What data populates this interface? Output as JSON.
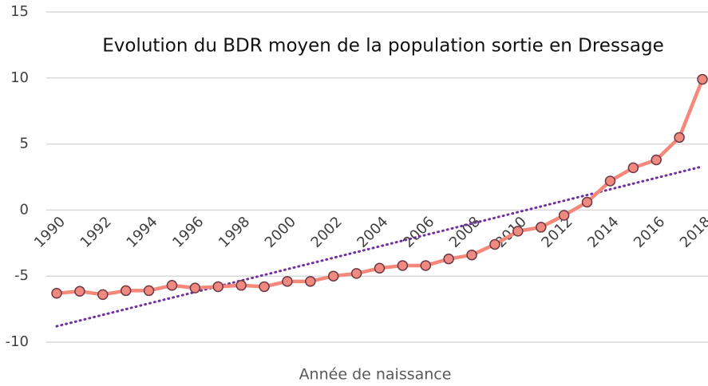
{
  "chart_data": {
    "type": "line",
    "title": "Evolution du BDR moyen de la population sortie en Dressage",
    "xlabel": "Année de naissance",
    "x": [
      1990,
      1991,
      1992,
      1993,
      1994,
      1995,
      1996,
      1997,
      1998,
      1999,
      2000,
      2001,
      2002,
      2003,
      2004,
      2005,
      2006,
      2007,
      2008,
      2009,
      2010,
      2011,
      2012,
      2013,
      2014,
      2015,
      2016,
      2017,
      2018
    ],
    "series": [
      {
        "color": "#f4897b",
        "marker_color": "#f08a80",
        "values": [
          -6.3,
          -6.15,
          -6.4,
          -6.1,
          -6.1,
          -5.7,
          -5.9,
          -5.8,
          -5.7,
          -5.8,
          -5.4,
          -5.4,
          -5.0,
          -4.8,
          -4.4,
          -4.2,
          -4.2,
          -3.7,
          -3.4,
          -2.6,
          -1.6,
          -1.3,
          -0.4,
          0.6,
          2.2,
          3.2,
          3.8,
          5.5,
          9.9
        ]
      }
    ],
    "trendline": {
      "x": [
        1990,
        2018
      ],
      "values": [
        -8.8,
        3.3
      ],
      "color": "#7030a0"
    },
    "xlim": [
      1990,
      2018
    ],
    "xticks": [
      1990,
      1992,
      1994,
      1996,
      1998,
      2000,
      2002,
      2004,
      2006,
      2008,
      2010,
      2012,
      2014,
      2016,
      2018
    ],
    "ylim": [
      -10,
      15
    ],
    "yticks": [
      -10,
      -5,
      0,
      5,
      10,
      15
    ],
    "grid": true
  }
}
